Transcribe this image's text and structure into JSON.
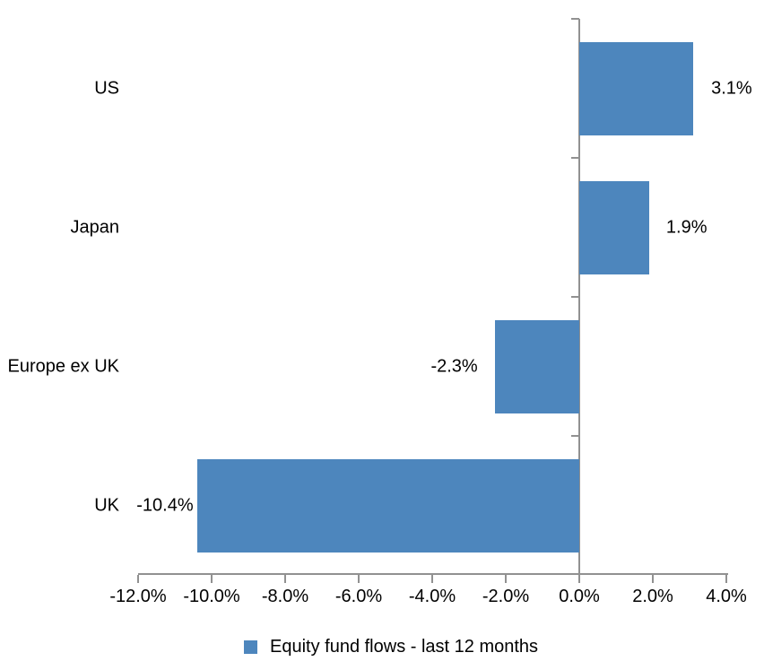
{
  "chart_data": {
    "type": "bar",
    "orientation": "horizontal",
    "title": "",
    "categories": [
      "US",
      "Japan",
      "Europe ex UK",
      "UK"
    ],
    "series": [
      {
        "name": "Equity fund flows - last 12 months",
        "values": [
          3.1,
          1.9,
          -2.3,
          -10.4
        ],
        "data_labels": [
          "3.1%",
          "1.9%",
          "-2.3%",
          "-10.4%"
        ],
        "color": "#4d86bd"
      }
    ],
    "xlabel": "",
    "ylabel": "",
    "xlim": [
      -12,
      4
    ],
    "x_ticks": [
      -12,
      -10,
      -8,
      -6,
      -4,
      -2,
      0,
      2,
      4
    ],
    "x_tick_labels": [
      "-12.0%",
      "-10.0%",
      "-8.0%",
      "-6.0%",
      "-4.0%",
      "-2.0%",
      "0.0%",
      "2.0%",
      "4.0%"
    ],
    "grid": false,
    "legend_position": "bottom",
    "axis_color": "#919191",
    "text_color": "#000000",
    "background": "#ffffff"
  },
  "legend": {
    "swatch_color": "#4d86bd",
    "label": "Equity fund flows - last 12 months"
  }
}
